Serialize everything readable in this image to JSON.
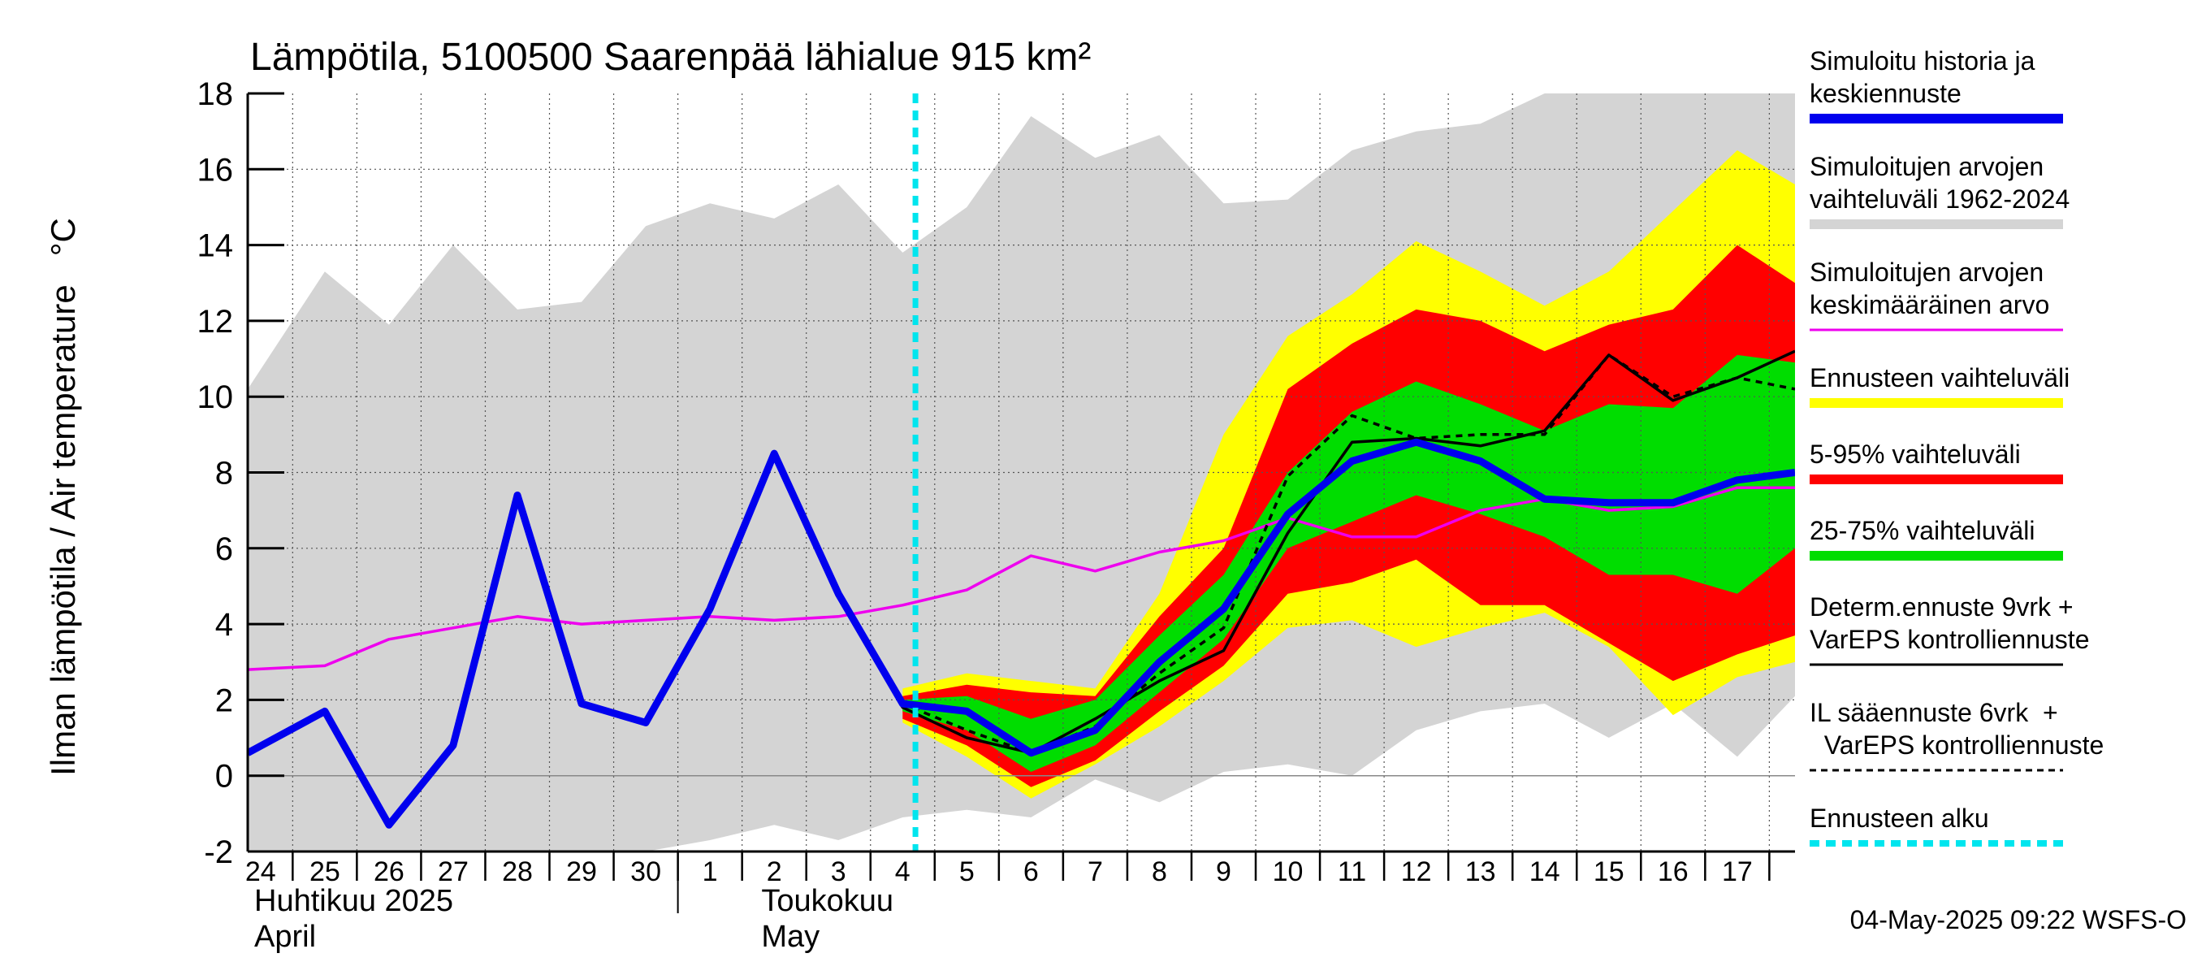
{
  "chart_data": {
    "type": "area",
    "title": "Lämpötila, 5100500 Saarenpää lähialue 915 km²",
    "ylabel": "Ilman lämpötila / Air temperature   °C",
    "ylim": [
      -2,
      18
    ],
    "yticks": [
      "-2",
      "0",
      "2",
      "4",
      "6",
      "8",
      "10",
      "12",
      "14",
      "16",
      "18"
    ],
    "day_labels": [
      "24",
      "25",
      "26",
      "27",
      "28",
      "29",
      "30",
      "1",
      "2",
      "3",
      "4",
      "5",
      "6",
      "7",
      "8",
      "9",
      "10",
      "11",
      "12",
      "13",
      "14",
      "15",
      "16",
      "17"
    ],
    "month_labels": [
      {
        "line1": "Huhtikuu  2025",
        "line2": "April"
      },
      {
        "line1": "Toukokuu",
        "line2": "May"
      }
    ],
    "forecast_start_day": 10.2,
    "x_range": [
      -0.2,
      23.9
    ],
    "series": [
      {
        "name": "Simuloitujen arvojen vaihteluväli 1962-2024",
        "color": "#d4d4d4",
        "x": [
          -0.2,
          1,
          2,
          3,
          4,
          5,
          6,
          7,
          8,
          9,
          10,
          11,
          12,
          13,
          14,
          15,
          16,
          17,
          18,
          19,
          20,
          21,
          22,
          23,
          23.9
        ],
        "upper": [
          10.2,
          13.3,
          11.9,
          14.0,
          12.3,
          12.5,
          14.5,
          15.1,
          14.7,
          15.6,
          13.8,
          15.0,
          17.4,
          16.3,
          16.9,
          15.1,
          15.2,
          16.5,
          17.0,
          17.2,
          18.0,
          18.0,
          18.0,
          18.0,
          18.0
        ],
        "lower": [
          -2.0,
          -2.0,
          -2.0,
          -2.0,
          -2.0,
          -2.0,
          -2.0,
          -1.7,
          -1.3,
          -1.7,
          -1.1,
          -0.9,
          -1.1,
          -0.1,
          -0.7,
          0.1,
          0.3,
          0.0,
          1.2,
          1.7,
          1.9,
          1.0,
          1.9,
          0.5,
          2.1
        ]
      },
      {
        "name": "Ennusteen vaihteluväli",
        "color": "#ffff00",
        "x": [
          10,
          11,
          12,
          13,
          14,
          15,
          16,
          17,
          18,
          19,
          20,
          21,
          22,
          23,
          23.9
        ],
        "upper": [
          2.3,
          2.7,
          2.5,
          2.3,
          4.8,
          9.0,
          11.6,
          12.7,
          14.1,
          13.3,
          12.4,
          13.3,
          14.9,
          16.5,
          15.6
        ],
        "lower": [
          1.4,
          0.5,
          -0.6,
          0.3,
          1.3,
          2.5,
          3.9,
          4.1,
          3.4,
          3.9,
          4.3,
          3.4,
          1.6,
          2.6,
          3.0
        ]
      },
      {
        "name": "5-95% vaihteluväli",
        "color": "#ff0000",
        "x": [
          10,
          11,
          12,
          13,
          14,
          15,
          16,
          17,
          18,
          19,
          20,
          21,
          22,
          23,
          23.9
        ],
        "upper": [
          2.1,
          2.4,
          2.2,
          2.1,
          4.2,
          6.0,
          10.2,
          11.4,
          12.3,
          12.0,
          11.2,
          11.9,
          12.3,
          14.0,
          13.0
        ],
        "lower": [
          1.5,
          0.8,
          -0.3,
          0.4,
          1.7,
          2.9,
          4.8,
          5.1,
          5.7,
          4.5,
          4.5,
          3.5,
          2.5,
          3.2,
          3.7
        ]
      },
      {
        "name": "25-75% vaihteluväli",
        "color": "#00dd00",
        "x": [
          10,
          11,
          12,
          13,
          14,
          15,
          16,
          17,
          18,
          19,
          20,
          21,
          22,
          23,
          23.9
        ],
        "upper": [
          2.0,
          2.1,
          1.5,
          2.0,
          3.7,
          5.3,
          8.0,
          9.6,
          10.4,
          9.8,
          9.1,
          9.8,
          9.7,
          11.1,
          10.9
        ],
        "lower": [
          1.7,
          1.2,
          0.1,
          0.8,
          2.2,
          3.6,
          6.0,
          6.7,
          7.4,
          6.9,
          6.3,
          5.3,
          5.3,
          4.8,
          6.0
        ]
      },
      {
        "name": "Simuloitujen arvojen keskimääräinen arvo",
        "color": "#ee00ee",
        "x": [
          -0.2,
          1,
          2,
          3,
          4,
          5,
          6,
          7,
          8,
          9,
          10,
          11,
          12,
          13,
          14,
          15,
          16,
          17,
          18,
          19,
          20,
          21,
          22,
          23,
          23.9
        ],
        "values": [
          2.8,
          2.9,
          3.6,
          3.9,
          4.2,
          4.0,
          4.1,
          4.2,
          4.1,
          4.2,
          4.5,
          4.9,
          5.8,
          5.4,
          5.9,
          6.2,
          6.8,
          6.3,
          6.3,
          7.0,
          7.3,
          7.0,
          7.1,
          7.6,
          7.6
        ]
      },
      {
        "name": "Determ.ennuste 9vrk + VarEPS kontrolliennuste",
        "color": "#000000",
        "x": [
          8,
          9,
          10,
          11,
          12,
          13,
          14,
          15,
          16,
          17,
          18,
          19,
          20,
          21,
          22,
          23,
          23.9
        ],
        "values": [
          8.5,
          4.8,
          1.8,
          1.0,
          0.6,
          1.5,
          2.5,
          3.3,
          6.4,
          8.8,
          8.9,
          8.7,
          9.1,
          11.1,
          9.9,
          10.5,
          11.2
        ]
      },
      {
        "name": "IL sääennuste 6vrk + VarEPS kontrolliennuste",
        "color": "#000000",
        "dashed": true,
        "x": [
          8,
          9,
          10,
          11,
          12,
          13,
          14,
          15,
          16,
          17,
          18,
          19,
          20,
          21,
          22,
          23,
          23.9
        ],
        "values": [
          8.5,
          4.8,
          1.9,
          1.2,
          0.6,
          1.3,
          2.7,
          3.9,
          7.9,
          9.5,
          8.9,
          9.0,
          9.0,
          11.1,
          10.0,
          10.5,
          10.2
        ]
      },
      {
        "name": "Simuloitu historia ja keskiennuste",
        "color": "#0000ee",
        "x": [
          -0.2,
          1,
          2,
          3,
          4,
          5,
          6,
          7,
          8,
          9,
          10,
          11,
          12,
          13,
          14,
          15,
          16,
          17,
          18,
          19,
          20,
          21,
          22,
          23,
          23.9
        ],
        "values": [
          0.6,
          1.7,
          -1.3,
          0.8,
          7.4,
          1.9,
          1.4,
          4.4,
          8.5,
          4.8,
          1.9,
          1.7,
          0.6,
          1.2,
          3.0,
          4.4,
          6.9,
          8.3,
          8.8,
          8.3,
          7.3,
          7.2,
          7.2,
          7.8,
          8.0
        ]
      }
    ],
    "legend": [
      {
        "text": "Simuloitu historia ja\nkeskiennuste",
        "color": "#0000ee",
        "style": "thick"
      },
      {
        "text": "Simuloitujen arvojen\nvaihteluväli 1962-2024",
        "color": "#d4d4d4",
        "style": "thick"
      },
      {
        "text": "Simuloitujen arvojen\nkeskimääräinen arvo",
        "color": "#ee00ee",
        "style": "thin"
      },
      {
        "text": "Ennusteen vaihteluväli",
        "color": "#ffff00",
        "style": "thick"
      },
      {
        "text": "5-95% vaihteluväli",
        "color": "#ff0000",
        "style": "thick"
      },
      {
        "text": "25-75% vaihteluväli",
        "color": "#00dd00",
        "style": "thick"
      },
      {
        "text": "Determ.ennuste 9vrk +\nVarEPS kontrolliennuste",
        "color": "#000000",
        "style": "thin"
      },
      {
        "text": "IL sääennuste 6vrk  +\n  VarEPS kontrolliennuste",
        "color": "#000000",
        "style": "dashed"
      },
      {
        "text": "Ennusteen alku",
        "color": "#00e5ee",
        "style": "dotted"
      }
    ],
    "footer": "04-May-2025 09:22 WSFS-O"
  }
}
